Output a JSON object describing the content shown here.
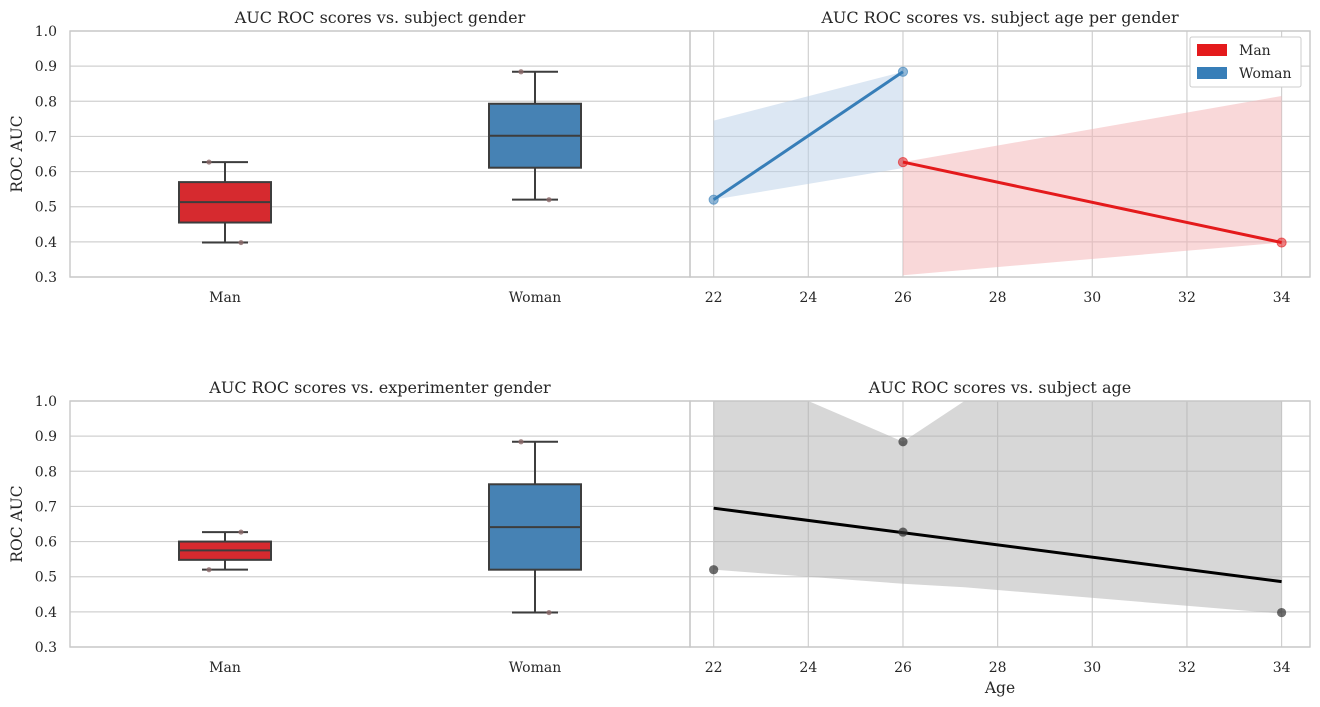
{
  "colors": {
    "man": "#e41a1c",
    "woman": "#377eb8",
    "man_box": "#d62a2f",
    "woman_box": "#4682b4",
    "overall": "#000000",
    "overall_band": "#b0b0b0",
    "man_band": "#f4b1b3",
    "woman_band": "#b9d0e7"
  },
  "chart_data": [
    {
      "id": "subject-gender",
      "type": "box",
      "title": "AUC ROC scores vs. subject gender",
      "xlabel": "",
      "ylabel": "ROC AUC",
      "ylim": [
        0.3,
        1.0
      ],
      "yticks": [
        "0.3",
        "0.4",
        "0.5",
        "0.6",
        "0.7",
        "0.8",
        "0.9",
        "1.0"
      ],
      "categories": [
        "Man",
        "Woman"
      ],
      "boxes": [
        {
          "label": "Man",
          "whislo": 0.398,
          "q1": 0.455,
          "med": 0.513,
          "q3": 0.57,
          "whishi": 0.627,
          "points": [
            0.398,
            0.627
          ]
        },
        {
          "label": "Woman",
          "whislo": 0.52,
          "q1": 0.611,
          "med": 0.702,
          "q3": 0.793,
          "whishi": 0.884,
          "points": [
            0.52,
            0.884
          ]
        }
      ]
    },
    {
      "id": "subject-age-gender",
      "type": "line",
      "title": "AUC ROC scores vs. subject age per gender",
      "xlabel": "",
      "ylabel": "",
      "ylim": [
        0.3,
        1.0
      ],
      "xlim": [
        21.5,
        34.6
      ],
      "xticks": [
        "22",
        "24",
        "26",
        "28",
        "30",
        "32",
        "34"
      ],
      "legend": {
        "position": "top-right",
        "entries": [
          "Man",
          "Woman"
        ]
      },
      "series": [
        {
          "name": "Woman",
          "x": [
            22,
            26
          ],
          "y": [
            0.52,
            0.884
          ],
          "band_upper": [
            0.745,
            0.884
          ],
          "band_lower": [
            0.52,
            0.61
          ]
        },
        {
          "name": "Man",
          "x": [
            26,
            34
          ],
          "y": [
            0.627,
            0.398
          ],
          "band_upper": [
            0.627,
            0.815
          ],
          "band_lower": [
            0.305,
            0.398
          ]
        }
      ]
    },
    {
      "id": "experimenter-gender",
      "type": "box",
      "title": "AUC ROC scores vs. experimenter gender",
      "xlabel": "",
      "ylabel": "ROC AUC",
      "ylim": [
        0.3,
        1.0
      ],
      "yticks": [
        "0.3",
        "0.4",
        "0.5",
        "0.6",
        "0.7",
        "0.8",
        "0.9",
        "1.0"
      ],
      "categories": [
        "Man",
        "Woman"
      ],
      "boxes": [
        {
          "label": "Man",
          "whislo": 0.52,
          "q1": 0.548,
          "med": 0.575,
          "q3": 0.6,
          "whishi": 0.627,
          "points": [
            0.627,
            0.52
          ]
        },
        {
          "label": "Woman",
          "whislo": 0.398,
          "q1": 0.52,
          "med": 0.641,
          "q3": 0.763,
          "whishi": 0.884,
          "points": [
            0.398,
            0.884
          ]
        }
      ]
    },
    {
      "id": "subject-age",
      "type": "scatter",
      "title": "AUC ROC scores vs. subject age",
      "xlabel": "Age",
      "ylabel": "",
      "ylim": [
        0.3,
        1.0
      ],
      "xlim": [
        21.5,
        34.6
      ],
      "xticks": [
        "22",
        "24",
        "26",
        "28",
        "30",
        "32",
        "34"
      ],
      "points": {
        "x": [
          22,
          26,
          26,
          34
        ],
        "y": [
          0.52,
          0.884,
          0.627,
          0.398
        ]
      },
      "fit": {
        "x": [
          22,
          34
        ],
        "y": [
          0.695,
          0.486
        ]
      },
      "band": {
        "x": [
          22,
          24,
          26,
          27.3,
          34
        ],
        "upper": [
          1.0,
          1.0,
          0.884,
          1.0,
          1.0
        ],
        "lower": [
          0.52,
          0.5,
          0.48,
          0.47,
          0.395
        ]
      }
    }
  ]
}
